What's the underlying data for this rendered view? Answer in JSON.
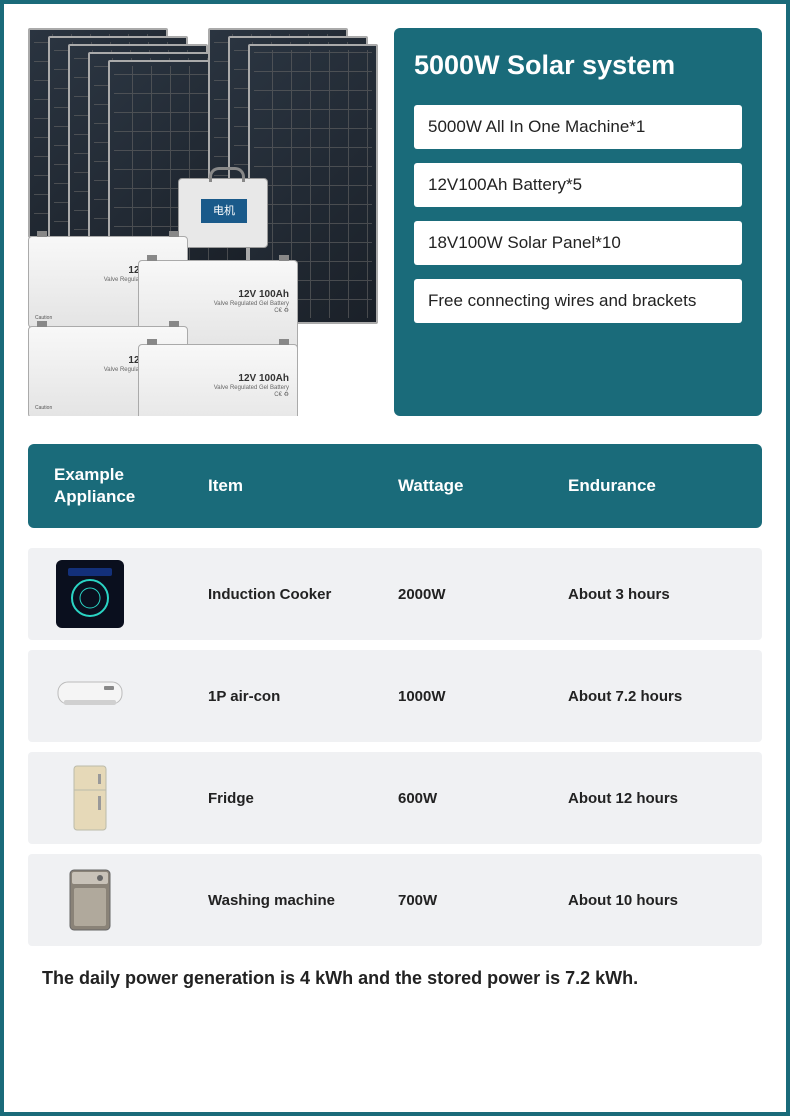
{
  "colors": {
    "brand": "#1a6b7a",
    "panel_bg": "#1a6b7a",
    "box_bg": "#ffffff",
    "row_bg": "#f0f1f3",
    "text": "#222222",
    "border": "#1a6b7a"
  },
  "product": {
    "battery_label": "12V 100Ah",
    "battery_sub": "Valve Regulated Gel Battery",
    "caution": "Caution"
  },
  "spec": {
    "title": "5000W Solar system",
    "items": [
      "5000W All In One Machine*1",
      "12V100Ah Battery*5",
      "18V100W Solar Panel*10",
      "Free connecting wires and brackets"
    ]
  },
  "table": {
    "headers": {
      "appliance": "Example Appliance",
      "item": "Item",
      "wattage": "Wattage",
      "endurance": "Endurance"
    },
    "rows": [
      {
        "icon": "induction-cooker",
        "item": "Induction Cooker",
        "wattage": "2000W",
        "endurance": "About 3 hours"
      },
      {
        "icon": "air-conditioner",
        "item": "1P air-con",
        "wattage": "1000W",
        "endurance": "About 7.2 hours"
      },
      {
        "icon": "fridge",
        "item": "Fridge",
        "wattage": "600W",
        "endurance": "About 12 hours"
      },
      {
        "icon": "washing-machine",
        "item": "Washing machine",
        "wattage": "700W",
        "endurance": "About 10 hours"
      }
    ]
  },
  "footer": "The daily power generation is 4 kWh and the stored power is 7.2 kWh."
}
